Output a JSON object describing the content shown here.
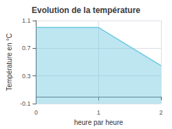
{
  "chart_data": {
    "type": "area",
    "title": "Evolution de la température",
    "xlabel": "heure par heure",
    "ylabel": "Température en °C",
    "x": [
      0,
      1,
      2
    ],
    "values": [
      1.0,
      1.0,
      0.45
    ],
    "color": "#6cc8e0",
    "xlim": [
      0,
      2
    ],
    "ylim": [
      -0.1,
      1.1
    ],
    "xticks": [
      0,
      1,
      2
    ],
    "yticks": [
      -0.1,
      0.3,
      0.7,
      1.1
    ],
    "grid": true
  }
}
